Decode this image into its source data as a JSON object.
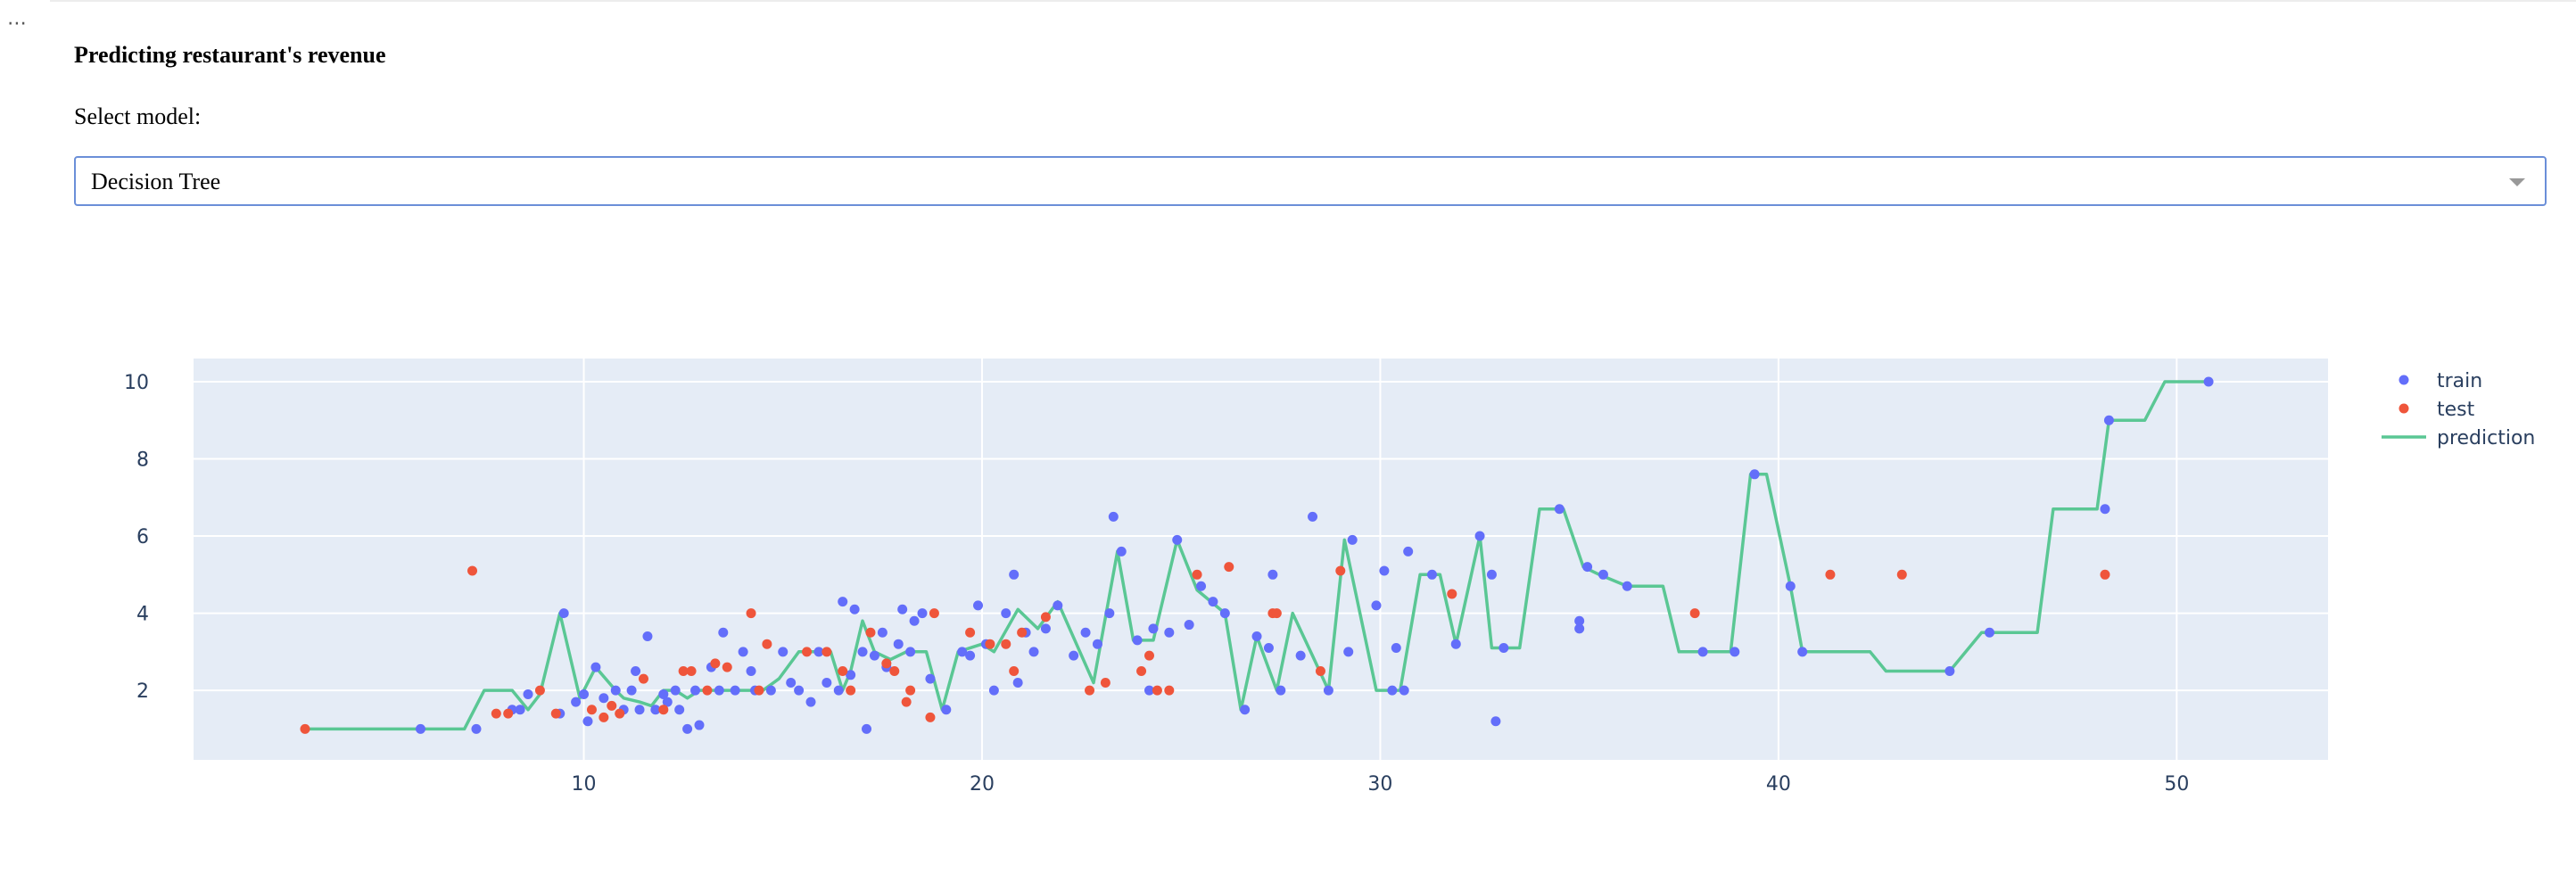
{
  "app": {
    "menu_icon": "ellipsis-icon",
    "title": "Predicting restaurant's revenue",
    "select_label": "Select model:",
    "model_select": {
      "selected": "Decision Tree",
      "icon": "chevron-down-icon"
    }
  },
  "colors": {
    "train": "#636efa",
    "test": "#ef553b",
    "prediction": "#5ac794",
    "plot_bg": "#e5ecf6",
    "grid": "#ffffff"
  },
  "chart_data": {
    "type": "scatter",
    "xlim": [
      0.2,
      53.8
    ],
    "ylim": [
      0.2,
      10.6
    ],
    "x_ticks": [
      10,
      20,
      30,
      40,
      50
    ],
    "y_ticks": [
      2,
      4,
      6,
      8,
      10
    ],
    "grid": true,
    "legend_position": "right",
    "series": [
      {
        "name": "train",
        "mode": "markers",
        "points": [
          [
            5.9,
            1.0
          ],
          [
            7.3,
            1.0
          ],
          [
            8.2,
            1.5
          ],
          [
            8.4,
            1.5
          ],
          [
            8.6,
            1.9
          ],
          [
            9.4,
            1.4
          ],
          [
            9.5,
            4.0
          ],
          [
            9.8,
            1.7
          ],
          [
            10.0,
            1.9
          ],
          [
            10.1,
            1.2
          ],
          [
            10.3,
            2.6
          ],
          [
            10.5,
            1.8
          ],
          [
            10.8,
            2.0
          ],
          [
            11.0,
            1.5
          ],
          [
            11.2,
            2.0
          ],
          [
            11.3,
            2.5
          ],
          [
            11.4,
            1.5
          ],
          [
            11.6,
            3.4
          ],
          [
            11.8,
            1.5
          ],
          [
            12.0,
            1.9
          ],
          [
            12.1,
            1.7
          ],
          [
            12.3,
            2.0
          ],
          [
            12.4,
            1.5
          ],
          [
            12.6,
            1.0
          ],
          [
            12.8,
            2.0
          ],
          [
            12.9,
            1.1
          ],
          [
            13.2,
            2.6
          ],
          [
            13.4,
            2.0
          ],
          [
            13.5,
            3.5
          ],
          [
            13.8,
            2.0
          ],
          [
            14.0,
            3.0
          ],
          [
            14.2,
            2.5
          ],
          [
            14.3,
            2.0
          ],
          [
            14.7,
            2.0
          ],
          [
            15.0,
            3.0
          ],
          [
            15.2,
            2.2
          ],
          [
            15.4,
            2.0
          ],
          [
            15.7,
            1.7
          ],
          [
            15.9,
            3.0
          ],
          [
            16.1,
            2.2
          ],
          [
            16.4,
            2.0
          ],
          [
            16.5,
            4.3
          ],
          [
            16.7,
            2.4
          ],
          [
            16.8,
            4.1
          ],
          [
            17.0,
            3.0
          ],
          [
            17.1,
            1.0
          ],
          [
            17.3,
            2.9
          ],
          [
            17.5,
            3.5
          ],
          [
            17.6,
            2.6
          ],
          [
            17.9,
            3.2
          ],
          [
            18.0,
            4.1
          ],
          [
            18.2,
            3.0
          ],
          [
            18.3,
            3.8
          ],
          [
            18.5,
            4.0
          ],
          [
            18.7,
            2.3
          ],
          [
            19.1,
            1.5
          ],
          [
            19.5,
            3.0
          ],
          [
            19.7,
            2.9
          ],
          [
            19.9,
            4.2
          ],
          [
            20.1,
            3.2
          ],
          [
            20.3,
            2.0
          ],
          [
            20.6,
            4.0
          ],
          [
            20.8,
            5.0
          ],
          [
            20.9,
            2.2
          ],
          [
            21.1,
            3.5
          ],
          [
            21.3,
            3.0
          ],
          [
            21.6,
            3.6
          ],
          [
            21.9,
            4.2
          ],
          [
            22.3,
            2.9
          ],
          [
            22.6,
            3.5
          ],
          [
            22.9,
            3.2
          ],
          [
            23.2,
            4.0
          ],
          [
            23.3,
            6.5
          ],
          [
            23.5,
            5.6
          ],
          [
            23.9,
            3.3
          ],
          [
            24.2,
            2.0
          ],
          [
            24.3,
            3.6
          ],
          [
            24.7,
            3.5
          ],
          [
            24.9,
            5.9
          ],
          [
            25.2,
            3.7
          ],
          [
            25.5,
            4.7
          ],
          [
            25.8,
            4.3
          ],
          [
            26.1,
            4.0
          ],
          [
            26.6,
            1.5
          ],
          [
            26.9,
            3.4
          ],
          [
            27.2,
            3.1
          ],
          [
            27.3,
            5.0
          ],
          [
            27.5,
            2.0
          ],
          [
            28.0,
            2.9
          ],
          [
            28.3,
            6.5
          ],
          [
            28.7,
            2.0
          ],
          [
            29.2,
            3.0
          ],
          [
            29.3,
            5.9
          ],
          [
            29.9,
            4.2
          ],
          [
            30.1,
            5.1
          ],
          [
            30.3,
            2.0
          ],
          [
            30.4,
            3.1
          ],
          [
            30.6,
            2.0
          ],
          [
            30.7,
            5.6
          ],
          [
            31.3,
            5.0
          ],
          [
            31.9,
            3.2
          ],
          [
            32.5,
            6.0
          ],
          [
            32.8,
            5.0
          ],
          [
            32.9,
            1.2
          ],
          [
            33.1,
            3.1
          ],
          [
            34.5,
            6.7
          ],
          [
            35.0,
            3.6
          ],
          [
            35.0,
            3.8
          ],
          [
            35.2,
            5.2
          ],
          [
            35.6,
            5.0
          ],
          [
            36.2,
            4.7
          ],
          [
            38.1,
            3.0
          ],
          [
            38.9,
            3.0
          ],
          [
            39.4,
            7.6
          ],
          [
            40.3,
            4.7
          ],
          [
            40.6,
            3.0
          ],
          [
            44.3,
            2.5
          ],
          [
            45.3,
            3.5
          ],
          [
            48.2,
            6.7
          ],
          [
            48.3,
            9.0
          ],
          [
            50.8,
            10.0
          ]
        ]
      },
      {
        "name": "test",
        "mode": "markers",
        "points": [
          [
            3.0,
            1.0
          ],
          [
            7.2,
            5.1
          ],
          [
            7.8,
            1.4
          ],
          [
            8.1,
            1.4
          ],
          [
            8.9,
            2.0
          ],
          [
            9.3,
            1.4
          ],
          [
            10.2,
            1.5
          ],
          [
            10.5,
            1.3
          ],
          [
            10.7,
            1.6
          ],
          [
            10.9,
            1.4
          ],
          [
            11.5,
            2.3
          ],
          [
            12.0,
            1.5
          ],
          [
            12.5,
            2.5
          ],
          [
            12.7,
            2.5
          ],
          [
            13.1,
            2.0
          ],
          [
            13.3,
            2.7
          ],
          [
            13.6,
            2.6
          ],
          [
            14.2,
            4.0
          ],
          [
            14.4,
            2.0
          ],
          [
            14.6,
            3.2
          ],
          [
            15.6,
            3.0
          ],
          [
            16.1,
            3.0
          ],
          [
            16.5,
            2.5
          ],
          [
            16.7,
            2.0
          ],
          [
            17.2,
            3.5
          ],
          [
            17.6,
            2.7
          ],
          [
            17.8,
            2.5
          ],
          [
            18.1,
            1.7
          ],
          [
            18.2,
            2.0
          ],
          [
            18.7,
            1.3
          ],
          [
            18.8,
            4.0
          ],
          [
            19.7,
            3.5
          ],
          [
            20.2,
            3.2
          ],
          [
            20.6,
            3.2
          ],
          [
            20.8,
            2.5
          ],
          [
            21.0,
            3.5
          ],
          [
            21.6,
            3.9
          ],
          [
            22.7,
            2.0
          ],
          [
            23.1,
            2.2
          ],
          [
            24.0,
            2.5
          ],
          [
            24.2,
            2.9
          ],
          [
            24.4,
            2.0
          ],
          [
            24.7,
            2.0
          ],
          [
            25.4,
            5.0
          ],
          [
            26.2,
            5.2
          ],
          [
            27.3,
            4.0
          ],
          [
            27.4,
            4.0
          ],
          [
            28.5,
            2.5
          ],
          [
            29.0,
            5.1
          ],
          [
            31.8,
            4.5
          ],
          [
            37.9,
            4.0
          ],
          [
            41.3,
            5.0
          ],
          [
            43.1,
            5.0
          ],
          [
            48.2,
            5.0
          ]
        ]
      },
      {
        "name": "prediction",
        "mode": "lines",
        "points": [
          [
            3.0,
            1.0
          ],
          [
            7.0,
            1.0
          ],
          [
            7.5,
            2.0
          ],
          [
            8.2,
            2.0
          ],
          [
            8.6,
            1.5
          ],
          [
            8.9,
            1.9
          ],
          [
            9.4,
            4.0
          ],
          [
            9.9,
            1.8
          ],
          [
            10.3,
            2.6
          ],
          [
            10.8,
            2.0
          ],
          [
            11.0,
            1.8
          ],
          [
            11.4,
            1.7
          ],
          [
            11.7,
            1.6
          ],
          [
            12.0,
            2.0
          ],
          [
            12.3,
            2.0
          ],
          [
            12.6,
            1.8
          ],
          [
            12.9,
            2.0
          ],
          [
            14.5,
            2.0
          ],
          [
            14.9,
            2.3
          ],
          [
            15.4,
            3.0
          ],
          [
            16.2,
            3.0
          ],
          [
            16.5,
            2.0
          ],
          [
            16.7,
            2.5
          ],
          [
            17.0,
            3.8
          ],
          [
            17.3,
            3.0
          ],
          [
            17.7,
            2.8
          ],
          [
            18.1,
            3.0
          ],
          [
            18.6,
            3.0
          ],
          [
            19.0,
            1.5
          ],
          [
            19.4,
            3.0
          ],
          [
            20.0,
            3.2
          ],
          [
            20.3,
            3.0
          ],
          [
            20.9,
            4.1
          ],
          [
            21.4,
            3.6
          ],
          [
            21.9,
            4.3
          ],
          [
            22.8,
            2.2
          ],
          [
            23.4,
            5.6
          ],
          [
            23.8,
            3.3
          ],
          [
            24.3,
            3.3
          ],
          [
            24.9,
            5.9
          ],
          [
            25.4,
            4.6
          ],
          [
            26.1,
            4.0
          ],
          [
            26.5,
            1.5
          ],
          [
            26.9,
            3.4
          ],
          [
            27.4,
            2.0
          ],
          [
            27.8,
            4.0
          ],
          [
            28.3,
            2.9
          ],
          [
            28.7,
            2.0
          ],
          [
            29.1,
            5.9
          ],
          [
            29.9,
            2.0
          ],
          [
            30.5,
            2.0
          ],
          [
            31.0,
            5.0
          ],
          [
            31.5,
            5.0
          ],
          [
            31.9,
            3.2
          ],
          [
            32.5,
            6.0
          ],
          [
            32.8,
            3.1
          ],
          [
            33.5,
            3.1
          ],
          [
            34.0,
            6.7
          ],
          [
            34.6,
            6.7
          ],
          [
            35.1,
            5.2
          ],
          [
            35.5,
            5.0
          ],
          [
            36.2,
            4.7
          ],
          [
            37.1,
            4.7
          ],
          [
            37.5,
            3.0
          ],
          [
            38.8,
            3.0
          ],
          [
            39.3,
            7.6
          ],
          [
            39.7,
            7.6
          ],
          [
            40.3,
            4.7
          ],
          [
            40.6,
            3.0
          ],
          [
            42.3,
            3.0
          ],
          [
            42.7,
            2.5
          ],
          [
            44.3,
            2.5
          ],
          [
            45.1,
            3.5
          ],
          [
            46.5,
            3.5
          ],
          [
            46.9,
            6.7
          ],
          [
            48.0,
            6.7
          ],
          [
            48.3,
            9.0
          ],
          [
            49.2,
            9.0
          ],
          [
            49.7,
            10.0
          ],
          [
            50.8,
            10.0
          ]
        ]
      }
    ]
  }
}
